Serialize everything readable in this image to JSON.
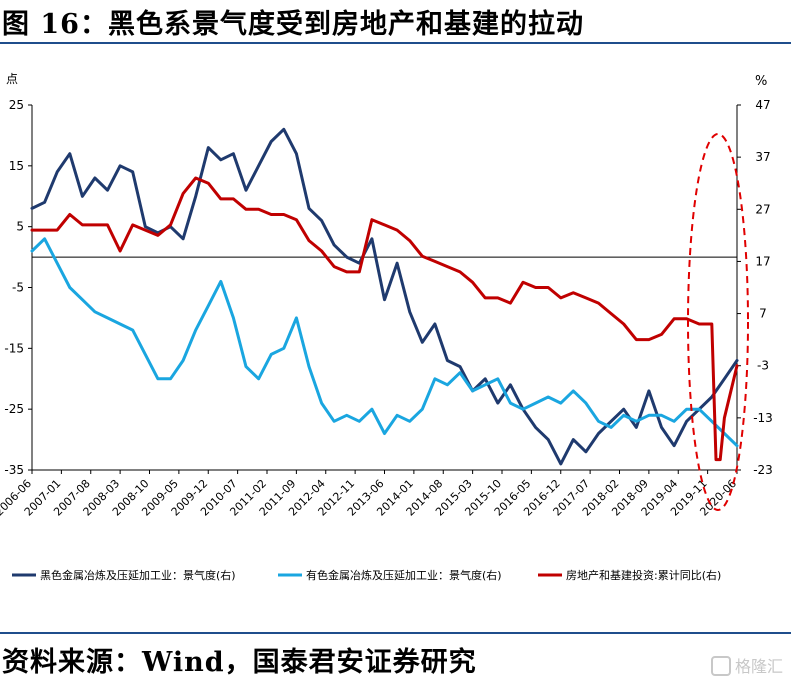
{
  "figure": {
    "title": "图 16：黑色系景气度受到房地产和基建的拉动",
    "source": "资料来源：Wind，国泰君安证券研究",
    "watermark": "格隆汇"
  },
  "colors": {
    "black_metal": "#1f3a6e",
    "nonferrous": "#1aa6e0",
    "property_infra": "#c00000",
    "highlight_ellipse": "#e00000",
    "rule": "#1f4e8c"
  },
  "chart_data": {
    "type": "line",
    "left_axis": {
      "unit": "点",
      "range": [
        -35,
        25
      ],
      "ticks": [
        25,
        15,
        5,
        -5,
        -15,
        -25,
        -35
      ],
      "tick_labels": [
        "25",
        "15",
        "5",
        "-5",
        "-15",
        "-25",
        "-35"
      ]
    },
    "right_axis": {
      "unit": "%",
      "range": [
        -23,
        47
      ],
      "ticks": [
        47,
        37,
        27,
        17,
        7,
        -3,
        -13,
        -23
      ],
      "tick_labels": [
        "47",
        "37",
        "27",
        "17",
        "7",
        "-3",
        "-13",
        "-23"
      ]
    },
    "x_axis": {
      "range": [
        "2006-06",
        "2020-06"
      ],
      "tick_labels": [
        "2006-06",
        "2007-01",
        "2007-08",
        "2008-03",
        "2008-10",
        "2009-05",
        "2009-12",
        "2010-07",
        "2011-02",
        "2011-09",
        "2012-04",
        "2012-11",
        "2013-06",
        "2014-01",
        "2014-08",
        "2015-03",
        "2015-10",
        "2016-05",
        "2016-12",
        "2017-07",
        "2018-02",
        "2018-09",
        "2019-04",
        "2019-11",
        "2020-06"
      ]
    },
    "legend_placement": "bottom",
    "grid": false,
    "annotation": "red dashed ellipse around 2019-11 to 2020-06",
    "series": [
      {
        "name": "黑色金属冶炼及压延加工业：景气度(右)",
        "axis": "left",
        "x": [
          "2006-06",
          "2006-09",
          "2006-12",
          "2007-03",
          "2007-06",
          "2007-09",
          "2007-12",
          "2008-03",
          "2008-06",
          "2008-09",
          "2008-12",
          "2009-03",
          "2009-06",
          "2009-09",
          "2009-12",
          "2010-03",
          "2010-06",
          "2010-09",
          "2010-12",
          "2011-03",
          "2011-06",
          "2011-09",
          "2011-12",
          "2012-03",
          "2012-06",
          "2012-09",
          "2012-12",
          "2013-03",
          "2013-06",
          "2013-09",
          "2013-12",
          "2014-03",
          "2014-06",
          "2014-09",
          "2014-12",
          "2015-03",
          "2015-06",
          "2015-09",
          "2015-12",
          "2016-03",
          "2016-06",
          "2016-09",
          "2016-12",
          "2017-03",
          "2017-06",
          "2017-09",
          "2017-12",
          "2018-03",
          "2018-06",
          "2018-09",
          "2018-12",
          "2019-03",
          "2019-06",
          "2019-09",
          "2019-12",
          "2020-03",
          "2020-06"
        ],
        "values": [
          8,
          9,
          14,
          17,
          10,
          13,
          11,
          15,
          14,
          5,
          4,
          5,
          3,
          10,
          18,
          16,
          17,
          11,
          15,
          19,
          21,
          17,
          8,
          6,
          2,
          0,
          -1,
          3,
          -7,
          -1,
          -9,
          -14,
          -11,
          -17,
          -18,
          -22,
          -20,
          -24,
          -21,
          -25,
          -28,
          -30,
          -34,
          -30,
          -32,
          -29,
          -27,
          -25,
          -28,
          -22,
          -28,
          -31,
          -27,
          -25,
          -23,
          -20,
          -17
        ]
      },
      {
        "name": "有色金属冶炼及压延加工业：景气度(右)",
        "axis": "left",
        "x": [
          "2006-06",
          "2006-09",
          "2006-12",
          "2007-03",
          "2007-06",
          "2007-09",
          "2007-12",
          "2008-03",
          "2008-06",
          "2008-09",
          "2008-12",
          "2009-03",
          "2009-06",
          "2009-09",
          "2009-12",
          "2010-03",
          "2010-06",
          "2010-09",
          "2010-12",
          "2011-03",
          "2011-06",
          "2011-09",
          "2011-12",
          "2012-03",
          "2012-06",
          "2012-09",
          "2012-12",
          "2013-03",
          "2013-06",
          "2013-09",
          "2013-12",
          "2014-03",
          "2014-06",
          "2014-09",
          "2014-12",
          "2015-03",
          "2015-06",
          "2015-09",
          "2015-12",
          "2016-03",
          "2016-06",
          "2016-09",
          "2016-12",
          "2017-03",
          "2017-06",
          "2017-09",
          "2017-12",
          "2018-03",
          "2018-06",
          "2018-09",
          "2018-12",
          "2019-03",
          "2019-06",
          "2019-09",
          "2019-12",
          "2020-03",
          "2020-06"
        ],
        "values": [
          1,
          3,
          -1,
          -5,
          -7,
          -9,
          -10,
          -11,
          -12,
          -16,
          -20,
          -20,
          -17,
          -12,
          -8,
          -4,
          -10,
          -18,
          -20,
          -16,
          -15,
          -10,
          -18,
          -24,
          -27,
          -26,
          -27,
          -25,
          -29,
          -26,
          -27,
          -25,
          -20,
          -21,
          -19,
          -22,
          -21,
          -20,
          -24,
          -25,
          -24,
          -23,
          -24,
          -22,
          -24,
          -27,
          -28,
          -26,
          -27,
          -26,
          -26,
          -27,
          -25,
          -25,
          -27,
          -29,
          -31
        ]
      },
      {
        "name": "房地产和基建投资:累计同比(右)",
        "axis": "right",
        "x": [
          "2006-06",
          "2006-09",
          "2006-12",
          "2007-03",
          "2007-06",
          "2007-09",
          "2007-12",
          "2008-03",
          "2008-06",
          "2008-09",
          "2008-12",
          "2009-03",
          "2009-06",
          "2009-09",
          "2009-12",
          "2010-03",
          "2010-06",
          "2010-09",
          "2010-12",
          "2011-03",
          "2011-06",
          "2011-09",
          "2011-12",
          "2012-03",
          "2012-06",
          "2012-09",
          "2012-12",
          "2013-03",
          "2013-06",
          "2013-09",
          "2013-12",
          "2014-03",
          "2014-06",
          "2014-09",
          "2014-12",
          "2015-03",
          "2015-06",
          "2015-09",
          "2015-12",
          "2016-03",
          "2016-06",
          "2016-09",
          "2016-12",
          "2017-03",
          "2017-06",
          "2017-09",
          "2017-12",
          "2018-03",
          "2018-06",
          "2018-09",
          "2018-12",
          "2019-03",
          "2019-06",
          "2019-09",
          "2019-12",
          "2020-01",
          "2020-02",
          "2020-03",
          "2020-06"
        ],
        "values": [
          23,
          23,
          23,
          26,
          24,
          24,
          24,
          19,
          24,
          23,
          22,
          24,
          30,
          33,
          32,
          29,
          29,
          27,
          27,
          26,
          26,
          25,
          21,
          19,
          16,
          15,
          15,
          25,
          24,
          23,
          21,
          18,
          17,
          16,
          15,
          13,
          10,
          10,
          9,
          13,
          12,
          12,
          10,
          11,
          10,
          9,
          7,
          5,
          2,
          2,
          3,
          6,
          6,
          5,
          5,
          -21,
          -21,
          -13,
          -3
        ]
      }
    ]
  }
}
